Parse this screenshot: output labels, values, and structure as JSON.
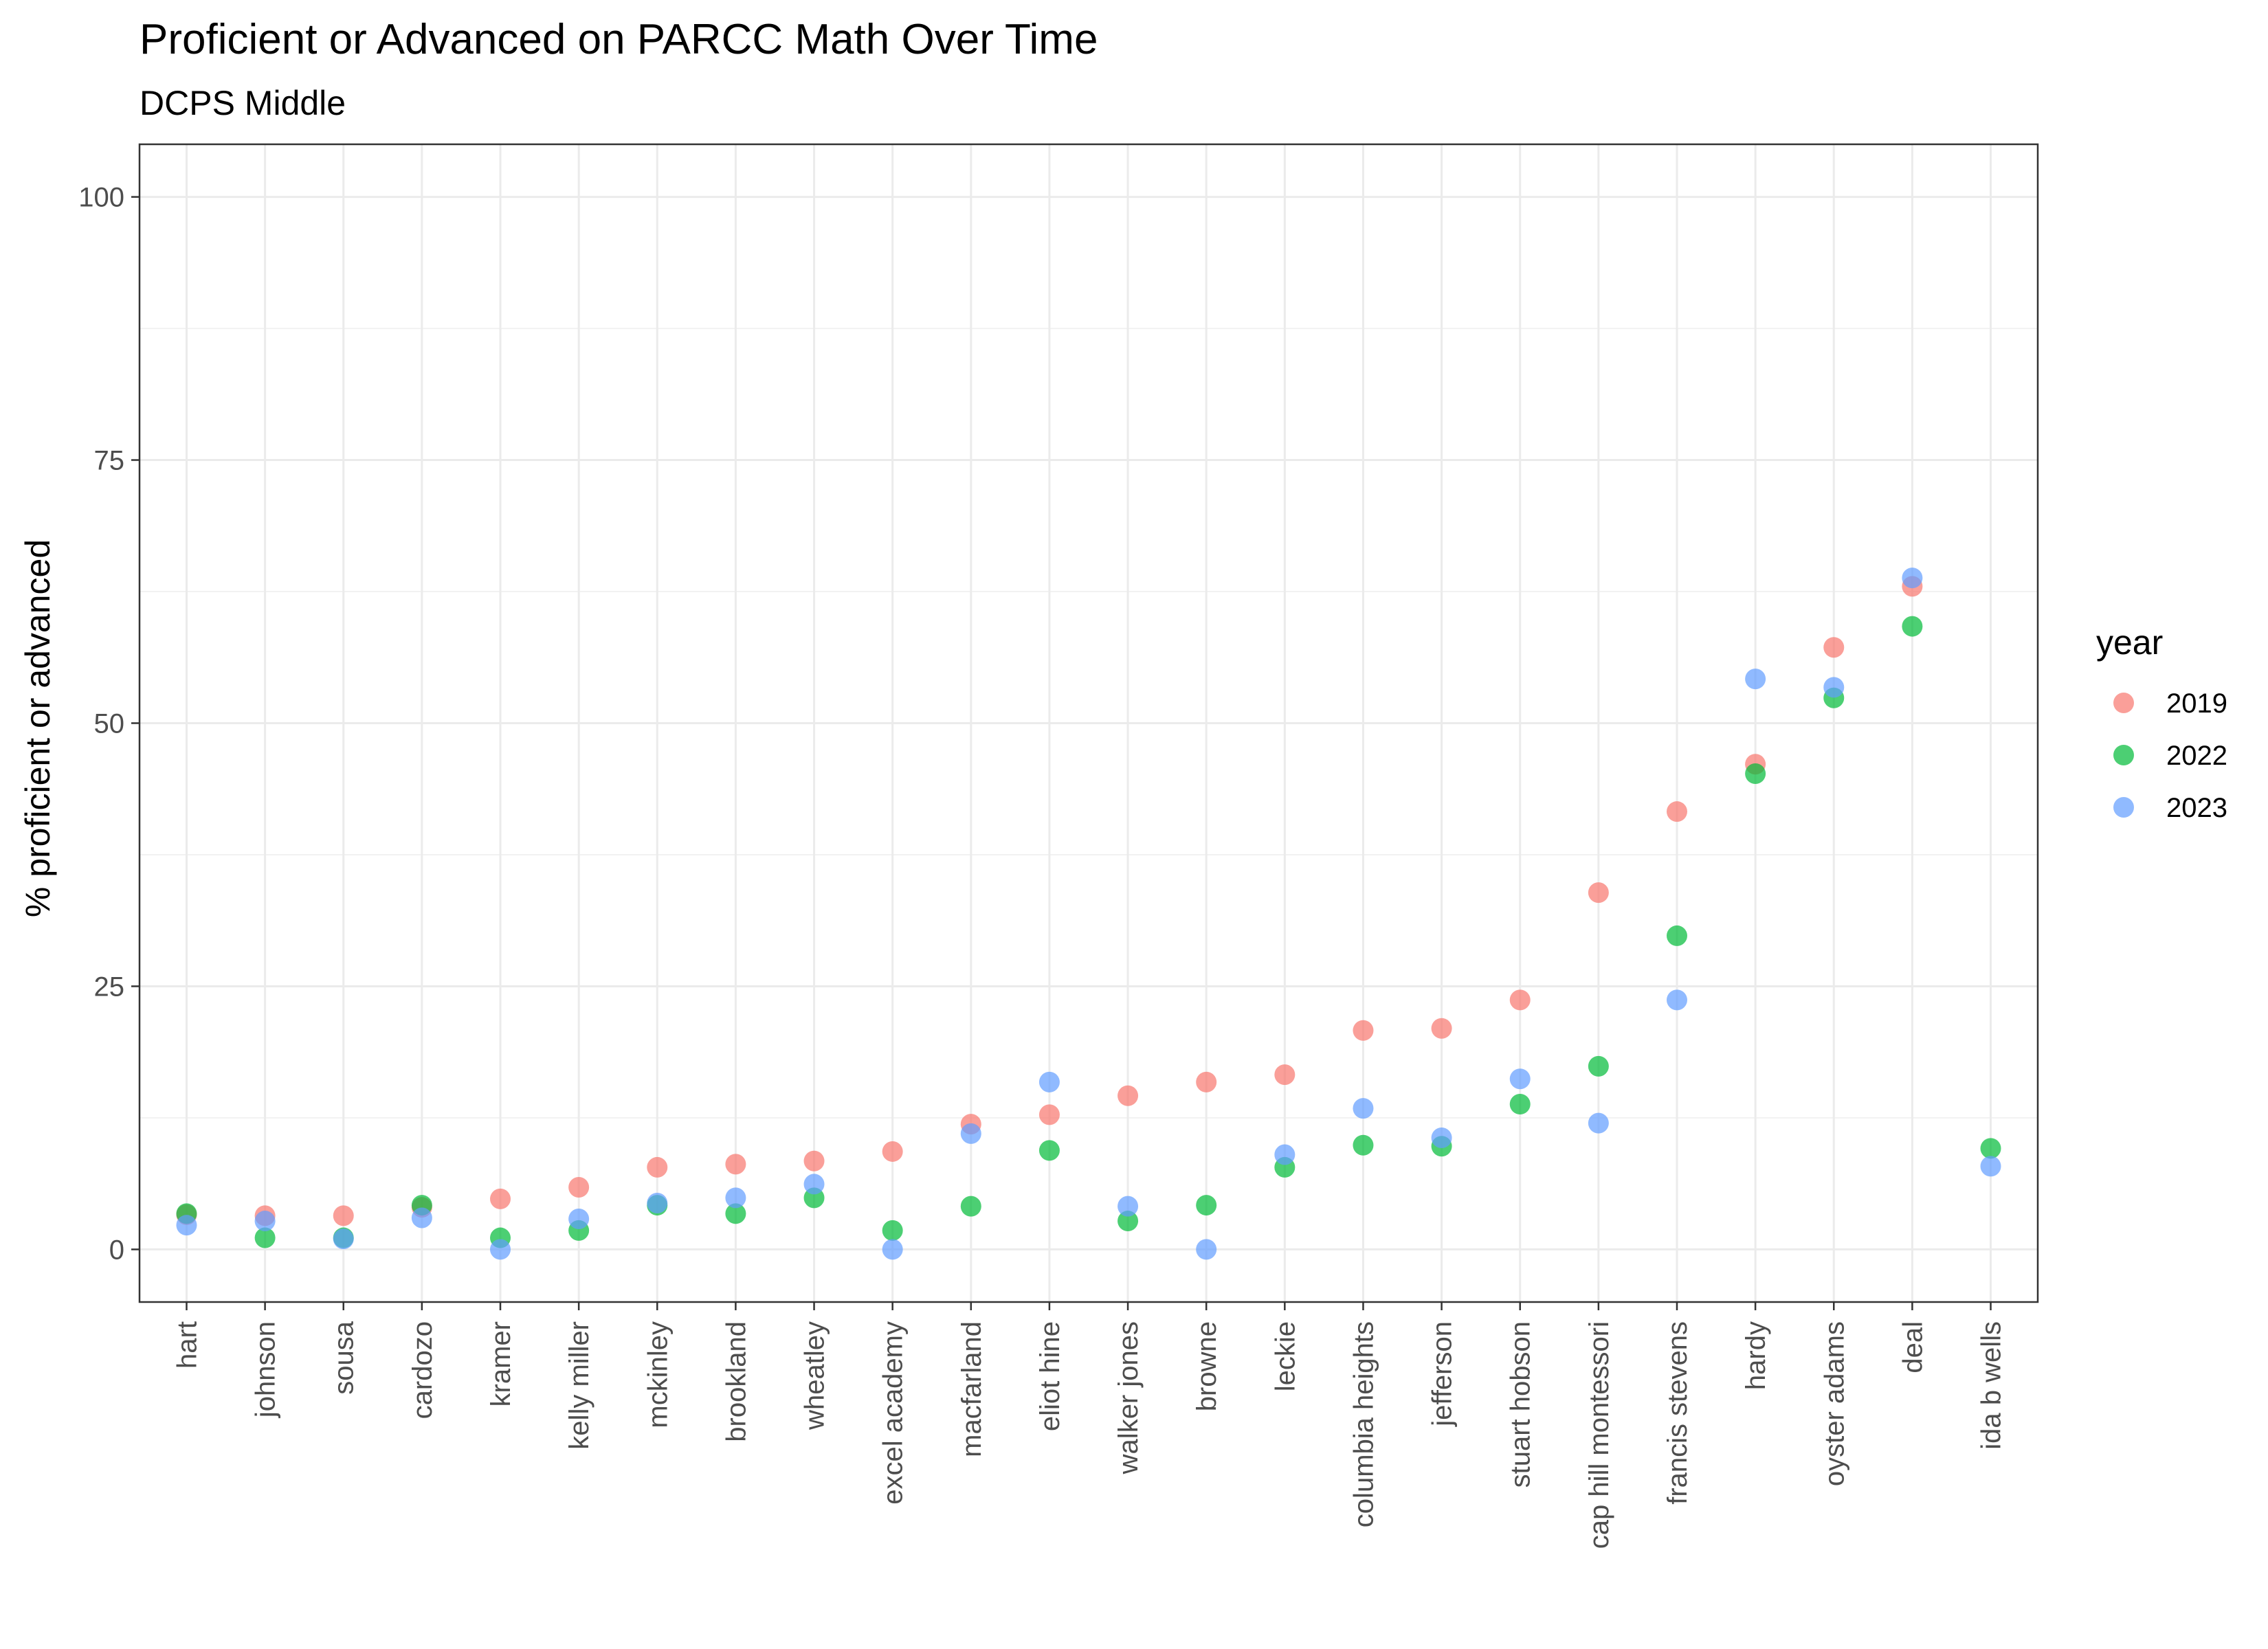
{
  "chart_data": {
    "type": "scatter",
    "title": "Proficient or Advanced on PARCC Math Over Time",
    "subtitle": "DCPS Middle",
    "xlabel": "",
    "ylabel": "% proficient or advanced",
    "ylim": [
      -5,
      105
    ],
    "yticks": [
      0,
      25,
      50,
      75,
      100
    ],
    "grid": true,
    "legend": {
      "title": "year",
      "position": "right"
    },
    "categories": [
      "hart",
      "johnson",
      "sousa",
      "cardozo",
      "kramer",
      "kelly miller",
      "mckinley",
      "brookland",
      "wheatley",
      "excel academy",
      "macfarland",
      "eliot hine",
      "walker jones",
      "browne",
      "leckie",
      "columbia heights",
      "jefferson",
      "stuart hobson",
      "cap hill montessori",
      "francis stevens",
      "hardy",
      "oyster adams",
      "deal",
      "ida b wells"
    ],
    "series": [
      {
        "name": "2019",
        "color": "#F8766D",
        "values": [
          3.3,
          3.2,
          3.2,
          4.0,
          4.8,
          5.9,
          7.8,
          8.1,
          8.4,
          9.3,
          11.9,
          12.8,
          14.6,
          15.9,
          16.6,
          20.8,
          21.0,
          23.7,
          33.9,
          41.6,
          46.1,
          57.2,
          63.0,
          null
        ]
      },
      {
        "name": "2022",
        "color": "#00BA38",
        "values": [
          3.4,
          1.1,
          1.1,
          4.2,
          1.1,
          1.8,
          4.2,
          3.4,
          4.9,
          1.8,
          4.1,
          9.4,
          2.7,
          4.2,
          7.8,
          9.9,
          9.8,
          13.8,
          17.4,
          29.8,
          45.2,
          52.4,
          59.2,
          9.6
        ]
      },
      {
        "name": "2023",
        "color": "#619CFF",
        "values": [
          2.3,
          2.7,
          1.0,
          3.0,
          0.0,
          2.9,
          4.4,
          4.9,
          6.2,
          0.0,
          11.0,
          15.9,
          4.1,
          0.0,
          9.0,
          13.4,
          10.6,
          16.2,
          12.0,
          23.7,
          54.2,
          53.4,
          63.8,
          7.9
        ]
      }
    ]
  }
}
